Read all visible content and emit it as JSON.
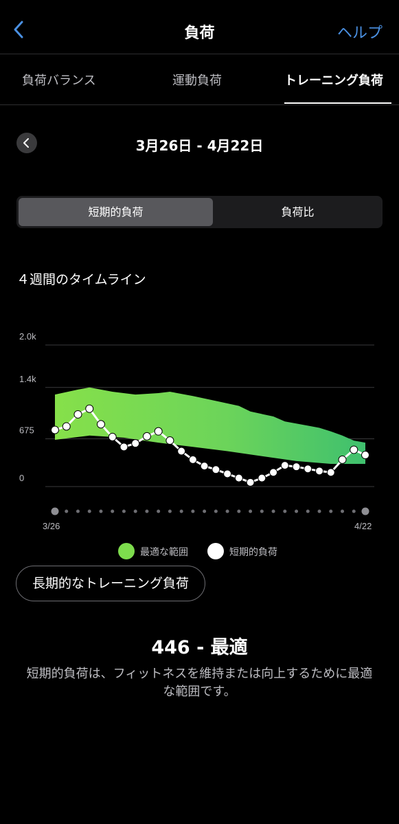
{
  "nav": {
    "title": "負荷",
    "help_label": "ヘルプ"
  },
  "tabs": [
    {
      "label": "負荷バランス"
    },
    {
      "label": "運動負荷"
    },
    {
      "label": "トレーニング負荷"
    }
  ],
  "date_range": {
    "label": "3月26日 - 4月22日"
  },
  "segment": {
    "options": [
      "短期的負荷",
      "負荷比"
    ],
    "selected": "短期的負荷"
  },
  "section_title": "４週間のタイムライン",
  "colors": {
    "optimal_range": "#7ddc4d",
    "short_term_load": "#ffffff",
    "accent": "#4a90e2"
  },
  "chart_data": {
    "type": "area",
    "title": "",
    "x": [
      "3/26",
      "3/27",
      "3/28",
      "3/29",
      "3/30",
      "3/31",
      "4/1",
      "4/2",
      "4/3",
      "4/4",
      "4/5",
      "4/6",
      "4/7",
      "4/8",
      "4/9",
      "4/10",
      "4/11",
      "4/12",
      "4/13",
      "4/14",
      "4/15",
      "4/16",
      "4/17",
      "4/18",
      "4/19",
      "4/20",
      "4/21",
      "4/22"
    ],
    "x_tick_labels": [
      "3/26",
      "4/22"
    ],
    "y_ticks": [
      "2.0k",
      "1.4k",
      "675",
      "0"
    ],
    "y_tick_values": [
      2000,
      1400,
      675,
      0
    ],
    "ylim": [
      0,
      2000
    ],
    "series": [
      {
        "name": "最適な範囲",
        "kind": "band",
        "upper": [
          1300,
          1370,
          1400,
          1340,
          1300,
          1320,
          1340,
          1280,
          1210,
          1140,
          1060,
          990,
          920,
          860,
          830,
          780,
          720,
          650,
          620,
          660,
          630
        ],
        "upper_x_index": [
          0,
          2,
          3,
          5,
          7,
          9,
          10,
          12,
          14,
          16,
          17,
          19,
          20,
          22,
          23,
          24,
          25,
          26,
          27,
          27,
          27
        ],
        "lower_x_index": [
          0,
          3,
          6,
          9,
          12,
          15,
          18,
          21,
          24,
          27
        ],
        "lower": [
          660,
          720,
          690,
          620,
          560,
          500,
          430,
          360,
          320,
          320
        ]
      },
      {
        "name": "短期的負荷",
        "kind": "line",
        "values": [
          800,
          850,
          1020,
          1100,
          880,
          700,
          560,
          610,
          710,
          780,
          650,
          500,
          380,
          290,
          240,
          180,
          120,
          60,
          120,
          200,
          300,
          280,
          250,
          220,
          200,
          380,
          520,
          446
        ]
      }
    ],
    "grid": true,
    "legend_position": "bottom"
  },
  "legend": [
    {
      "label": "最適な範囲"
    },
    {
      "label": "短期的負荷"
    }
  ],
  "long_term_button_label": "長期的なトレーニング負荷",
  "result": {
    "title": "446 - 最適",
    "description": "短期的負荷は、フィットネスを維持または向上するために最適な範囲です。"
  }
}
